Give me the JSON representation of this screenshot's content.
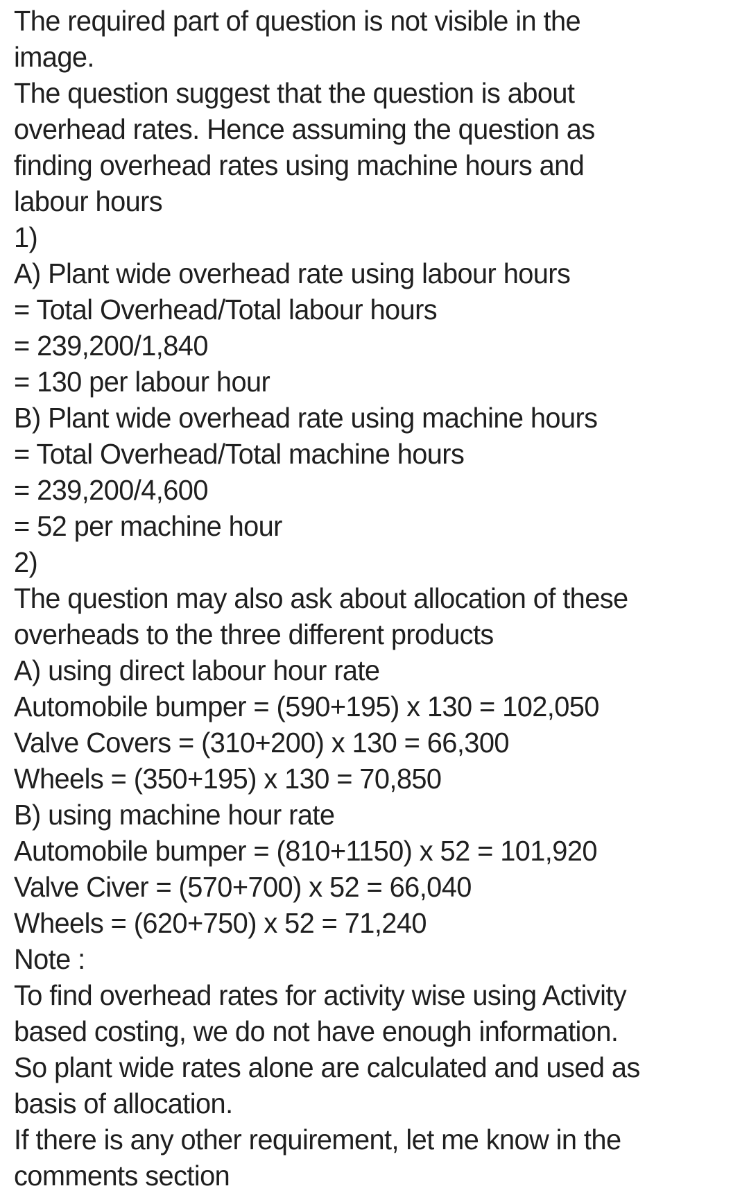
{
  "page": {
    "background_color": "#ffffff",
    "text_color": "#1f1f1f"
  },
  "document": {
    "lines": [
      "The required part of question is not visible in the",
      "image.",
      "The question suggest that the question is about",
      "overhead rates. Hence assuming the question as",
      "finding overhead rates using machine hours and",
      "labour hours",
      "1)",
      "A) Plant wide overhead rate using labour hours",
      "= Total Overhead/Total labour hours",
      "= 239,200/1,840",
      "= 130 per labour hour",
      "B) Plant wide overhead rate using machine hours",
      "= Total Overhead/Total machine hours",
      "= 239,200/4,600",
      "= 52 per machine hour",
      "2)",
      "The question may also ask about allocation of these",
      "overheads to the three different products",
      "A) using direct labour hour rate",
      "Automobile bumper = (590+195) x 130 = 102,050",
      "Valve Covers = (310+200) x 130 = 66,300",
      "Wheels = (350+195) x 130 = 70,850",
      "B) using machine hour rate",
      "Automobile bumper = (810+1150) x 52 = 101,920",
      "Valve Civer = (570+700) x 52 = 66,040",
      "Wheels = (620+750) x 52 = 71,240",
      "Note :",
      "To find overhead rates for activity wise using Activity",
      "based costing, we do not have enough information.",
      "So plant wide rates alone are calculated and used as",
      "basis of allocation.",
      "If there is any other requirement, let me know in the",
      "comments section"
    ]
  }
}
